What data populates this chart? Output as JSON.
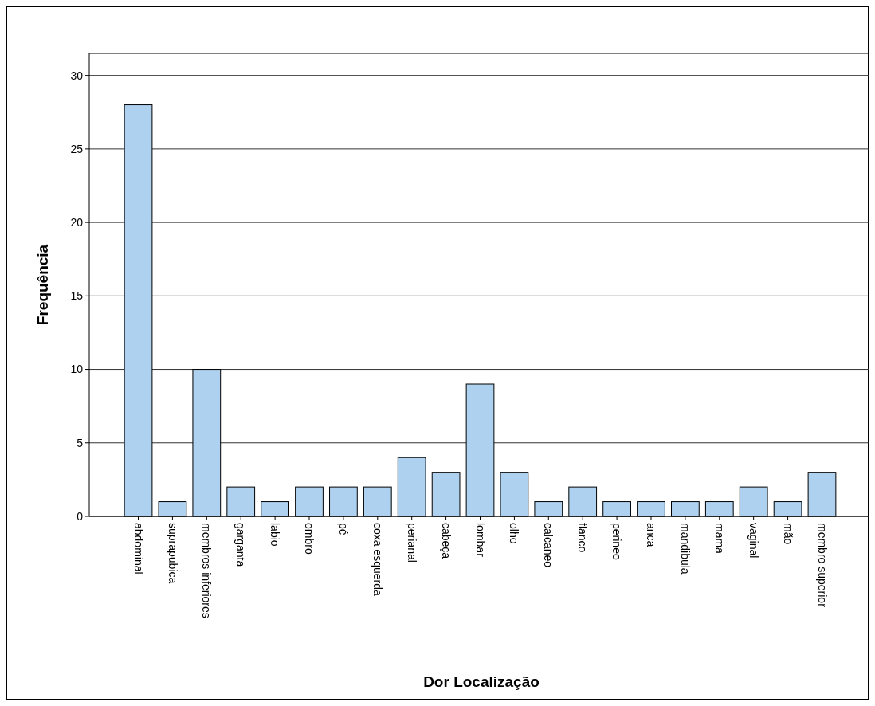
{
  "chart_data": {
    "type": "bar",
    "xlabel": "Dor Localização",
    "ylabel": "Frequência",
    "categories": [
      "abdominal",
      "suprapubica",
      "membros inferiores",
      "garganta",
      "labio",
      "ombro",
      "pé",
      "coxa esquerda",
      "perianal",
      "cabeça",
      "lombar",
      "olho",
      "calcaneo",
      "flanco",
      "perineo",
      "anca",
      "mandibula",
      "mama",
      "vaginal",
      "mão",
      "membro superior"
    ],
    "values": [
      28,
      1,
      10,
      2,
      1,
      2,
      2,
      2,
      4,
      3,
      9,
      3,
      1,
      2,
      1,
      1,
      1,
      1,
      2,
      1,
      3
    ],
    "color": "#aed1ef",
    "ylim": [
      0,
      31.5
    ],
    "yticks": [
      0,
      5,
      10,
      15,
      20,
      25,
      30
    ],
    "grid": "y"
  }
}
